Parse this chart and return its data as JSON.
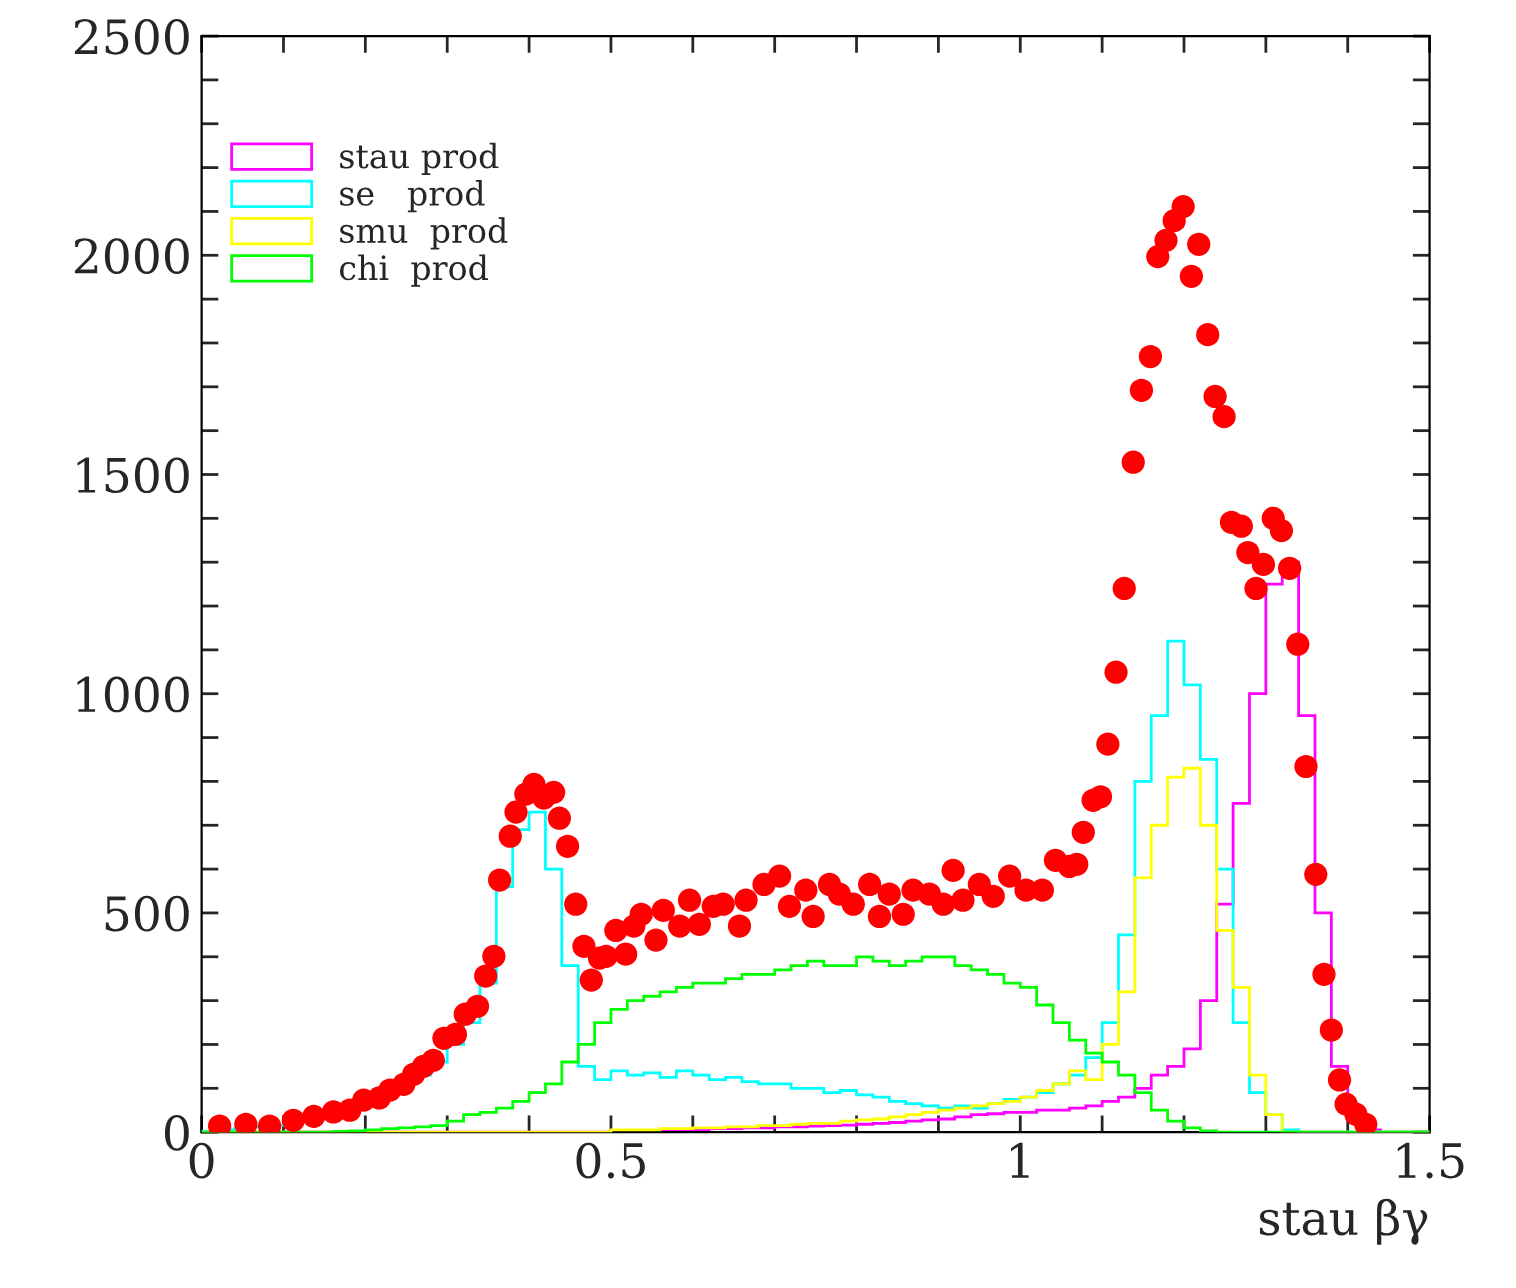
{
  "chart_data": {
    "type": "histogram",
    "xlabel": "stau βγ",
    "bins": [
      0,
      0.02,
      0.04,
      0.06,
      0.08,
      0.1,
      0.12,
      0.14,
      0.16,
      0.18,
      0.2,
      0.22,
      0.24,
      0.26,
      0.28,
      0.3,
      0.32,
      0.34,
      0.36,
      0.38,
      0.4,
      0.42,
      0.44,
      0.46,
      0.48,
      0.5,
      0.52,
      0.54,
      0.56,
      0.58,
      0.6,
      0.62,
      0.64,
      0.66,
      0.68,
      0.7,
      0.72,
      0.74,
      0.76,
      0.78,
      0.8,
      0.82,
      0.84,
      0.86,
      0.88,
      0.9,
      0.92,
      0.94,
      0.96,
      0.98,
      1.0,
      1.02,
      1.04,
      1.06,
      1.08,
      1.1,
      1.12,
      1.14,
      1.16,
      1.18,
      1.2,
      1.22,
      1.24,
      1.26,
      1.28,
      1.3,
      1.32,
      1.34,
      1.36,
      1.38,
      1.4,
      1.42,
      1.44,
      1.46,
      1.48,
      1.5
    ],
    "series": [
      {
        "name": "stau prod",
        "color": "#ff00ff",
        "values": [
          0,
          0,
          0,
          0,
          0,
          0,
          0,
          0,
          0,
          0,
          0,
          0,
          0,
          0,
          0,
          0,
          0,
          0,
          0,
          0,
          0,
          0,
          0,
          0,
          0,
          3,
          3,
          4,
          5,
          5,
          6,
          8,
          8,
          10,
          10,
          12,
          12,
          14,
          15,
          16,
          18,
          20,
          22,
          25,
          28,
          30,
          35,
          40,
          42,
          45,
          45,
          50,
          50,
          55,
          60,
          70,
          80,
          100,
          130,
          150,
          190,
          300,
          520,
          750,
          1000,
          1250,
          1300,
          950,
          500,
          150,
          40,
          5,
          0,
          0,
          0
        ]
      },
      {
        "name": "se   prod",
        "color": "#00ffff",
        "values": [
          2,
          5,
          8,
          12,
          15,
          20,
          25,
          35,
          45,
          55,
          70,
          90,
          110,
          130,
          160,
          200,
          250,
          340,
          560,
          690,
          730,
          600,
          380,
          150,
          120,
          140,
          130,
          135,
          125,
          140,
          130,
          120,
          125,
          115,
          110,
          110,
          100,
          100,
          90,
          95,
          85,
          80,
          70,
          65,
          60,
          55,
          60,
          55,
          65,
          75,
          80,
          90,
          110,
          130,
          170,
          250,
          450,
          800,
          950,
          1120,
          1020,
          850,
          600,
          250,
          90,
          40,
          5,
          0,
          0,
          0,
          0,
          0,
          0,
          0,
          0
        ]
      },
      {
        "name": "smu  prod",
        "color": "#ffff00",
        "values": [
          0,
          0,
          0,
          0,
          0,
          0,
          0,
          0,
          0,
          0,
          0,
          0,
          0,
          0,
          0,
          0,
          0,
          0,
          0,
          0,
          0,
          0,
          0,
          0,
          0,
          5,
          5,
          5,
          8,
          8,
          10,
          10,
          12,
          12,
          15,
          15,
          18,
          20,
          20,
          25,
          28,
          30,
          35,
          40,
          45,
          50,
          55,
          60,
          65,
          70,
          80,
          95,
          110,
          140,
          120,
          200,
          320,
          580,
          700,
          810,
          830,
          700,
          460,
          330,
          130,
          40,
          0,
          0,
          0,
          0,
          0,
          0,
          0,
          0,
          0
        ]
      },
      {
        "name": "chi  prod",
        "color": "#00ff00",
        "values": [
          0,
          0,
          0,
          0,
          0,
          0,
          0,
          0,
          2,
          3,
          5,
          8,
          10,
          12,
          15,
          25,
          40,
          45,
          55,
          70,
          90,
          110,
          160,
          200,
          250,
          280,
          300,
          310,
          320,
          330,
          340,
          340,
          350,
          360,
          360,
          370,
          380,
          390,
          380,
          380,
          400,
          390,
          380,
          390,
          400,
          400,
          380,
          370,
          360,
          340,
          330,
          290,
          250,
          210,
          180,
          160,
          130,
          90,
          50,
          25,
          10,
          3,
          0,
          0,
          0,
          0,
          0,
          0,
          0,
          0,
          0,
          0,
          0,
          0,
          0
        ]
      },
      {
        "type": "scatter",
        "color": "#ff0000",
        "marker": "circle",
        "x": [
          0.022,
          0.054,
          0.083,
          0.112,
          0.137,
          0.161,
          0.181,
          0.198,
          0.217,
          0.23,
          0.247,
          0.259,
          0.271,
          0.283,
          0.296,
          0.31,
          0.322,
          0.337,
          0.347,
          0.357,
          0.364,
          0.377,
          0.384,
          0.396,
          0.406,
          0.418,
          0.43,
          0.437,
          0.447,
          0.457,
          0.467,
          0.476,
          0.486,
          0.494,
          0.506,
          0.518,
          0.528,
          0.537,
          0.555,
          0.564,
          0.584,
          0.596,
          0.608,
          0.625,
          0.637,
          0.657,
          0.665,
          0.687,
          0.706,
          0.718,
          0.738,
          0.747,
          0.767,
          0.779,
          0.796,
          0.816,
          0.828,
          0.84,
          0.857,
          0.869,
          0.889,
          0.906,
          0.918,
          0.93,
          0.95,
          0.967,
          0.987,
          1.007,
          1.027,
          1.043,
          1.06,
          1.069,
          1.077,
          1.089,
          1.098,
          1.107,
          1.117,
          1.127,
          1.138,
          1.148,
          1.159,
          1.168,
          1.178,
          1.188,
          1.199,
          1.209,
          1.218,
          1.229,
          1.238,
          1.249,
          1.258,
          1.27,
          1.278,
          1.288,
          1.297,
          1.309,
          1.319,
          1.329,
          1.339,
          1.349,
          1.361,
          1.371,
          1.38,
          1.39,
          1.398,
          1.41,
          1.422
        ],
        "values": [
          14,
          18,
          14,
          27,
          36,
          46,
          50,
          73,
          78,
          96,
          109,
          132,
          150,
          164,
          214,
          223,
          269,
          287,
          356,
          401,
          575,
          675,
          730,
          771,
          793,
          762,
          775,
          716,
          652,
          520,
          424,
          347,
          397,
          401,
          460,
          406,
          470,
          497,
          438,
          506,
          470,
          529,
          474,
          515,
          520,
          470,
          529,
          565,
          584,
          515,
          552,
          492,
          565,
          543,
          520,
          565,
          492,
          543,
          497,
          552,
          543,
          520,
          597,
          529,
          565,
          538,
          584,
          552,
          552,
          620,
          606,
          611,
          684,
          757,
          765,
          885,
          1049,
          1240,
          1528,
          1692,
          1769,
          1997,
          2034,
          2079,
          2111,
          1952,
          2025,
          1819,
          1678,
          1632,
          1391,
          1382,
          1322,
          1240,
          1295,
          1400,
          1372,
          1286,
          1113,
          834,
          588,
          360,
          233,
          119,
          64,
          41,
          18
        ]
      }
    ],
    "xlim": [
      0,
      1.5
    ],
    "xticks": [
      0,
      {
        "value": 0.1,
        "label": null
      },
      {
        "value": 0.2,
        "label": null
      },
      {
        "value": 0.3,
        "label": null
      },
      {
        "value": 0.4,
        "label": null
      },
      0.5,
      {
        "value": 0.6,
        "label": null
      },
      {
        "value": 0.7,
        "label": null
      },
      {
        "value": 0.8,
        "label": null
      },
      {
        "value": 0.9,
        "label": null
      },
      1,
      {
        "value": 1.1,
        "label": null
      },
      {
        "value": 1.2,
        "label": null
      },
      {
        "value": 1.3,
        "label": null
      },
      {
        "value": 1.4,
        "label": null
      },
      1.5
    ],
    "ylim": [
      0,
      2500
    ],
    "yticks": [
      0,
      {
        "value": 100,
        "label": null
      },
      {
        "value": 200,
        "label": null
      },
      {
        "value": 300,
        "label": null
      },
      {
        "value": 400,
        "label": null
      },
      500,
      {
        "value": 600,
        "label": null
      },
      {
        "value": 700,
        "label": null
      },
      {
        "value": 800,
        "label": null
      },
      {
        "value": 900,
        "label": null
      },
      1000,
      {
        "value": 1100,
        "label": null
      },
      {
        "value": 1200,
        "label": null
      },
      {
        "value": 1300,
        "label": null
      },
      {
        "value": 1400,
        "label": null
      },
      1500,
      {
        "value": 1600,
        "label": null
      },
      {
        "value": 1700,
        "label": null
      },
      {
        "value": 1800,
        "label": null
      },
      {
        "value": 1900,
        "label": null
      },
      2000,
      {
        "value": 2100,
        "label": null
      },
      {
        "value": 2200,
        "label": null
      },
      {
        "value": 2300,
        "label": null
      },
      {
        "value": 2400,
        "label": null
      },
      2500
    ],
    "grid": false,
    "legend": "top left"
  }
}
